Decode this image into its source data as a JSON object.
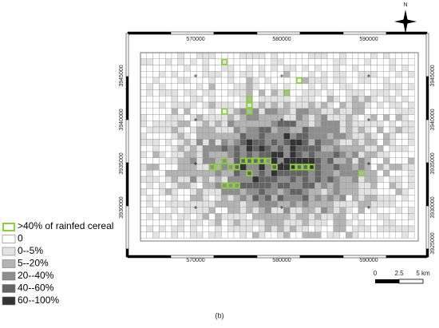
{
  "north": "N",
  "x_labels": [
    "570000",
    "580000",
    "590000"
  ],
  "y_labels": [
    "3945000",
    "3940000",
    "3935000",
    "3930000",
    "3925000"
  ],
  "legend": [
    {
      "label": ">40% of rainfed cereal",
      "color": "#8ccf3c"
    },
    {
      "label": "0",
      "color": "#ffffff"
    },
    {
      "label": "0--5%",
      "color": "#e2e2e2"
    },
    {
      "label": "5--20%",
      "color": "#b4b4b4"
    },
    {
      "label": "20--40%",
      "color": "#8e8e8e"
    },
    {
      "label": "40--60%",
      "color": "#646464"
    },
    {
      "label": "60--100%",
      "color": "#333333"
    }
  ],
  "scale_labels": [
    "0",
    "2.5",
    "5 km"
  ],
  "caption": "(b)"
}
